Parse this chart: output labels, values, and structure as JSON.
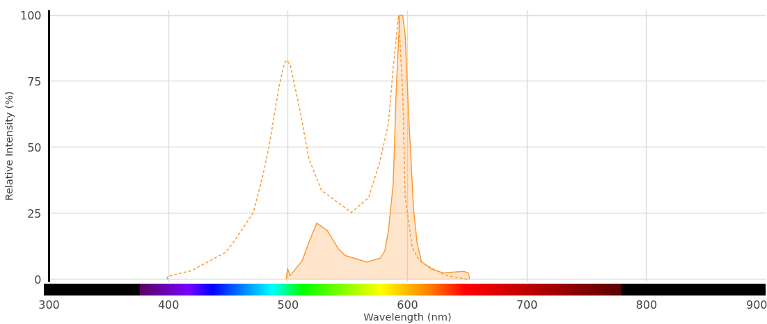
{
  "chart_data": {
    "type": "line",
    "xlabel": "Wavelength (nm)",
    "ylabel": "Relative Intensity (%)",
    "xlim": [
      300,
      900
    ],
    "ylim": [
      -1,
      102
    ],
    "xticks": [
      300,
      400,
      500,
      600,
      700,
      800,
      900
    ],
    "yticks": [
      0,
      25,
      50,
      75,
      100
    ],
    "grid": true,
    "series": [
      {
        "line_style": "dashed",
        "color": "#ff9933",
        "x": [
          399,
          399,
          406,
          419,
          448,
          454,
          471,
          479,
          484,
          492.5,
          497,
          499,
          502,
          510,
          517.5,
          528,
          553,
          567.5,
          577,
          584,
          588,
          592.5,
          596,
          598,
          604,
          610,
          621,
          633,
          650
        ],
        "values": [
          0,
          1,
          1.9,
          3.2,
          10.3,
          13.8,
          25.3,
          39.5,
          50,
          73,
          82,
          83,
          81,
          64,
          45.6,
          33.7,
          25.3,
          31,
          44.8,
          59,
          80,
          100,
          71,
          31.5,
          12,
          7,
          4,
          1.4,
          0
        ]
      },
      {
        "type": "area",
        "line_style": "solid",
        "color": "#ff9933",
        "x": [
          498.5,
          499.6,
          501.8,
          511.8,
          517.5,
          524,
          533,
          542,
          548,
          566,
          577,
          581,
          584,
          588,
          590.5,
          593.5,
          596,
          598,
          601,
          605,
          608,
          611.6,
          619.5,
          630,
          647,
          651,
          652
        ],
        "values": [
          0,
          4,
          1.4,
          7,
          14,
          21.3,
          18.4,
          11.6,
          9,
          6.5,
          8,
          10.7,
          18.3,
          36,
          71,
          100,
          100,
          92.6,
          62,
          27,
          13.8,
          6.7,
          4,
          2.4,
          3,
          2.4,
          0
        ]
      }
    ]
  }
}
